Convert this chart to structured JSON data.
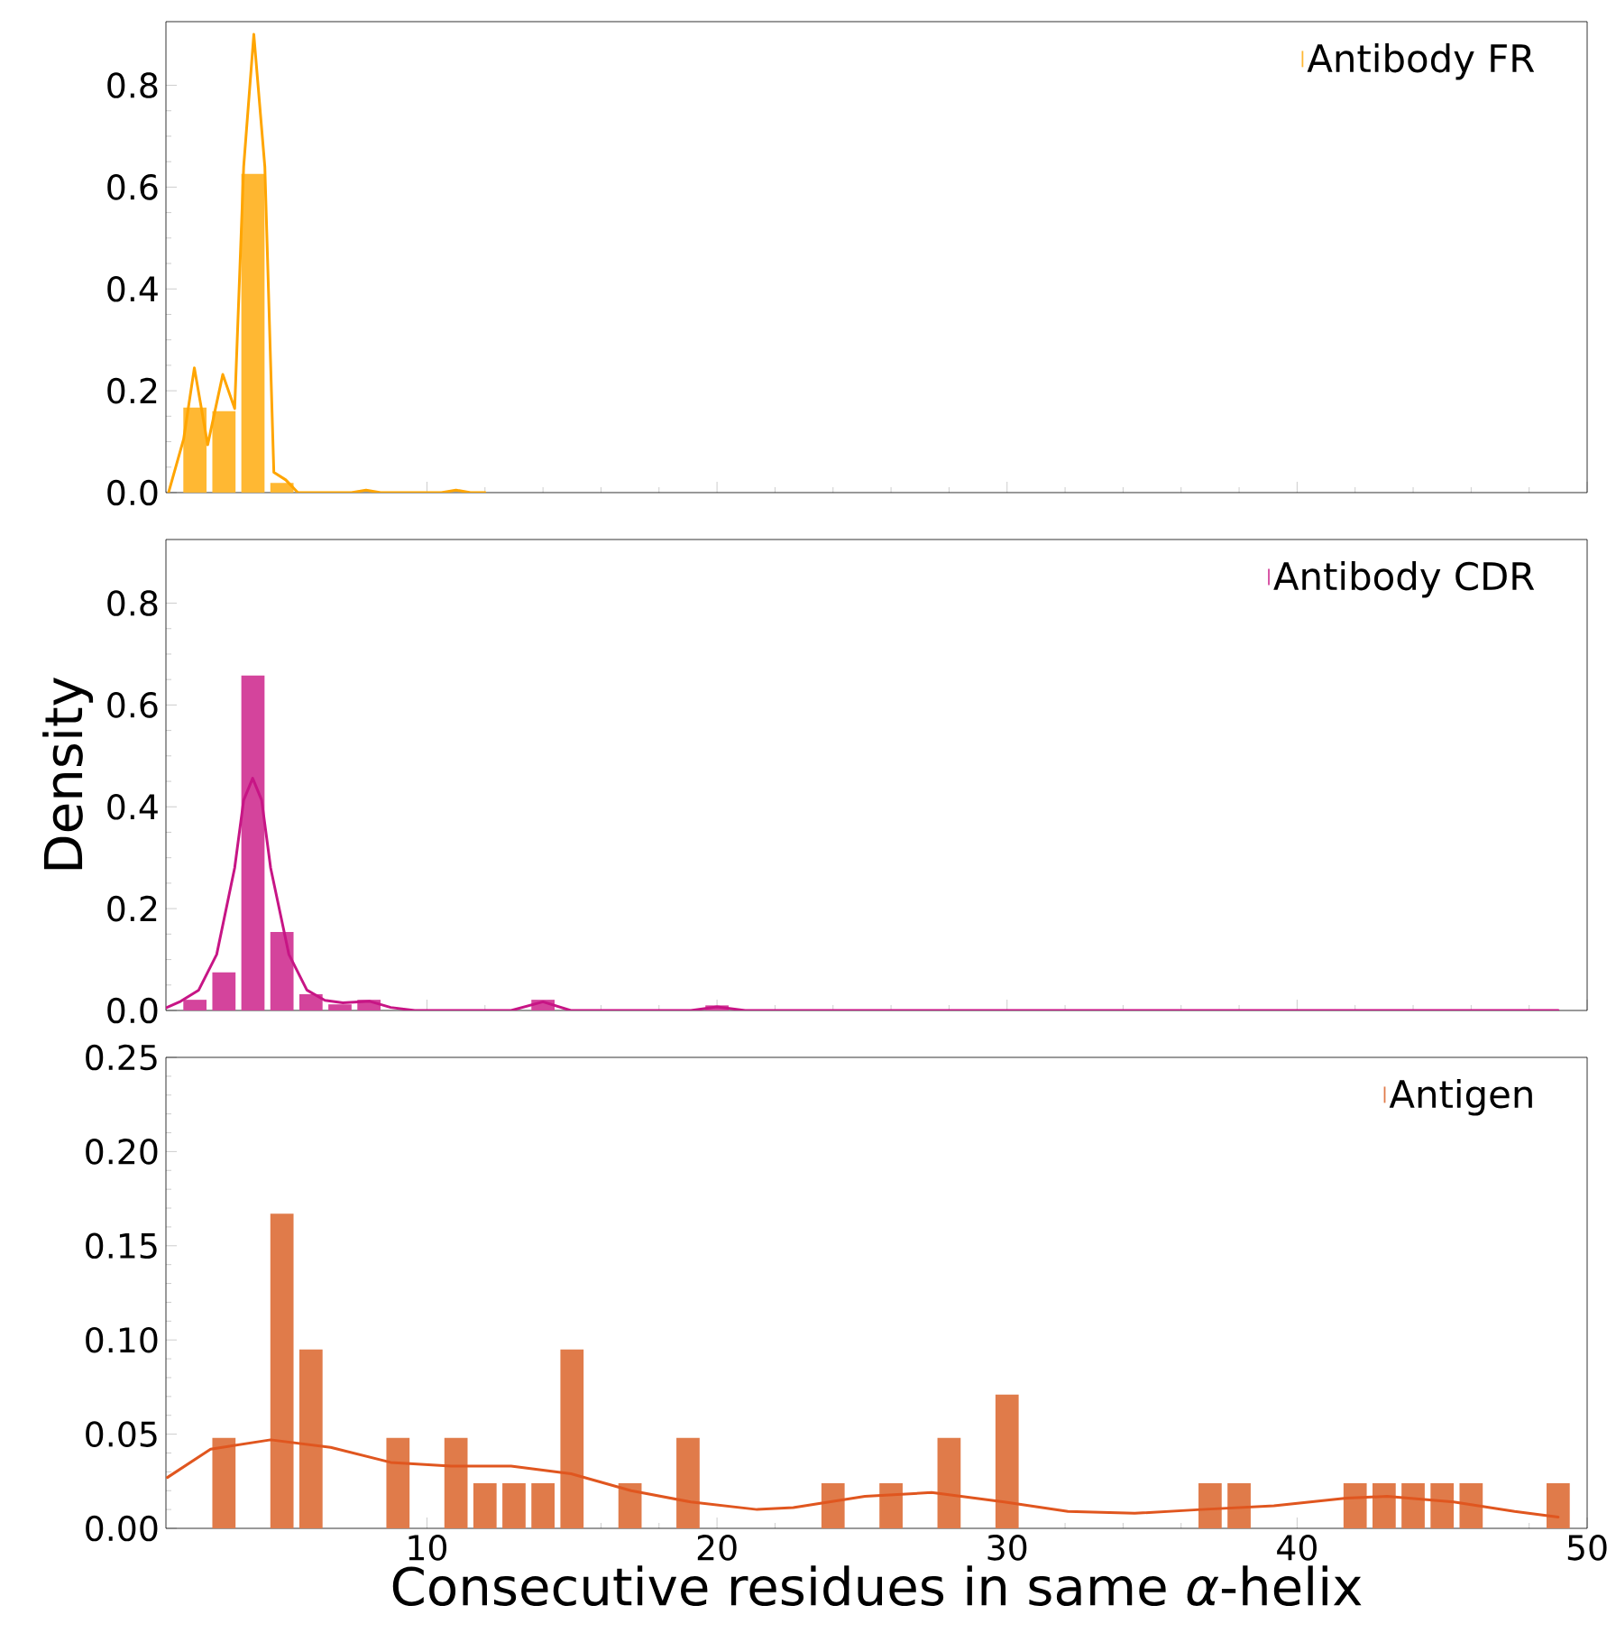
{
  "chart_data": [
    {
      "type": "bar",
      "legend": "top right",
      "tick_labels": "y",
      "xlim": [
        1,
        50
      ],
      "ylim": [
        0,
        0.925
      ],
      "xticks": [
        10,
        20,
        30,
        40,
        50
      ],
      "yticks": [
        {
          "value": 0,
          "label": "0.0"
        },
        {
          "value": 0.2,
          "label": "0.2"
        },
        {
          "value": 0.4,
          "label": "0.4"
        },
        {
          "value": 0.6,
          "label": "0.6"
        },
        {
          "value": 0.8,
          "label": "0.8"
        }
      ],
      "series": [
        {
          "name": "Antibody FR",
          "color": "#ffb833",
          "x": [
            2,
            3,
            4,
            5
          ],
          "values": [
            0.167,
            0.16,
            0.626,
            0.019
          ]
        },
        {
          "type": "line",
          "color": "#ffa500",
          "x": [
            1.09,
            1.61,
            1.98,
            2.44,
            2.96,
            3.37,
            3.68,
            4.03,
            4.41,
            4.72,
            5.13,
            5.55,
            7.4,
            7.9,
            8.4,
            10.5,
            11.0,
            11.5,
            12.0
          ],
          "values": [
            0,
            0.105,
            0.245,
            0.094,
            0.232,
            0.165,
            0.64,
            0.9,
            0.64,
            0.04,
            0.025,
            0,
            0,
            0.005,
            0,
            0,
            0.005,
            0,
            0
          ]
        }
      ]
    },
    {
      "type": "bar",
      "legend": "top right",
      "tick_labels": "y",
      "xlim": [
        1,
        50
      ],
      "ylim": [
        0,
        0.925
      ],
      "ylabel": "Density",
      "xticks": [
        10,
        20,
        30,
        40,
        50
      ],
      "yticks": [
        {
          "value": 0,
          "label": "0.0"
        },
        {
          "value": 0.2,
          "label": "0.2"
        },
        {
          "value": 0.4,
          "label": "0.4"
        },
        {
          "value": 0.6,
          "label": "0.6"
        },
        {
          "value": 0.8,
          "label": "0.8"
        }
      ],
      "series": [
        {
          "name": "Antibody CDR",
          "color": "#d4449c",
          "x": [
            2,
            3,
            4,
            5,
            6,
            7,
            8,
            14,
            20
          ],
          "values": [
            0.021,
            0.075,
            0.658,
            0.154,
            0.032,
            0.012,
            0.021,
            0.021,
            0.01
          ]
        },
        {
          "type": "line",
          "color": "#c71585",
          "x": [
            1.0,
            1.51,
            2.13,
            2.75,
            3.37,
            3.68,
            3.99,
            4.3,
            4.61,
            5.24,
            5.86,
            6.48,
            7.1,
            8.03,
            8.75,
            9.58,
            12.9,
            14.0,
            14.96,
            19.1,
            20.0,
            20.97,
            49.0
          ],
          "values": [
            0.005,
            0.018,
            0.04,
            0.11,
            0.28,
            0.413,
            0.456,
            0.413,
            0.28,
            0.11,
            0.04,
            0.02,
            0.015,
            0.018,
            0.006,
            0,
            0,
            0.017,
            0,
            0,
            0.007,
            0,
            0
          ]
        }
      ]
    },
    {
      "type": "bar",
      "legend": "top right",
      "xlim": [
        1,
        50
      ],
      "ylim": [
        0,
        0.25
      ],
      "xlabel": "Consecutive residues in same *α*-helix",
      "xticks": [
        10,
        20,
        30,
        40,
        50
      ],
      "yticks": [
        {
          "value": 0,
          "label": "0.00"
        },
        {
          "value": 0.05,
          "label": "0.05"
        },
        {
          "value": 0.1,
          "label": "0.10"
        },
        {
          "value": 0.15,
          "label": "0.15"
        },
        {
          "value": 0.2,
          "label": "0.20"
        },
        {
          "value": 0.25,
          "label": "0.25"
        }
      ],
      "series": [
        {
          "name": "Antigen",
          "color": "#e07b4a",
          "x": [
            3,
            5,
            6,
            9,
            11,
            12,
            13,
            14,
            15,
            17,
            19,
            24,
            26,
            28,
            30,
            37,
            38,
            42,
            43,
            44,
            45,
            46,
            49
          ],
          "values": [
            0.048,
            0.167,
            0.095,
            0.048,
            0.048,
            0.024,
            0.024,
            0.024,
            0.095,
            0.024,
            0.048,
            0.024,
            0.024,
            0.048,
            0.071,
            0.024,
            0.024,
            0.024,
            0.024,
            0.024,
            0.024,
            0.024,
            0.024
          ]
        },
        {
          "type": "line",
          "color": "#e0561f",
          "x": [
            1.05,
            2.54,
            4.61,
            6.68,
            8.75,
            10.83,
            12.9,
            14.97,
            17.04,
            19.1,
            21.38,
            22.63,
            25.1,
            27.4,
            29.9,
            32.1,
            34.4,
            36.7,
            39.2,
            41.7,
            43.1,
            45.4,
            47.5,
            49.0
          ],
          "values": [
            0.027,
            0.042,
            0.047,
            0.043,
            0.035,
            0.033,
            0.033,
            0.029,
            0.02,
            0.014,
            0.01,
            0.011,
            0.017,
            0.019,
            0.014,
            0.009,
            0.008,
            0.01,
            0.012,
            0.016,
            0.017,
            0.014,
            0.009,
            0.006
          ]
        }
      ]
    }
  ]
}
